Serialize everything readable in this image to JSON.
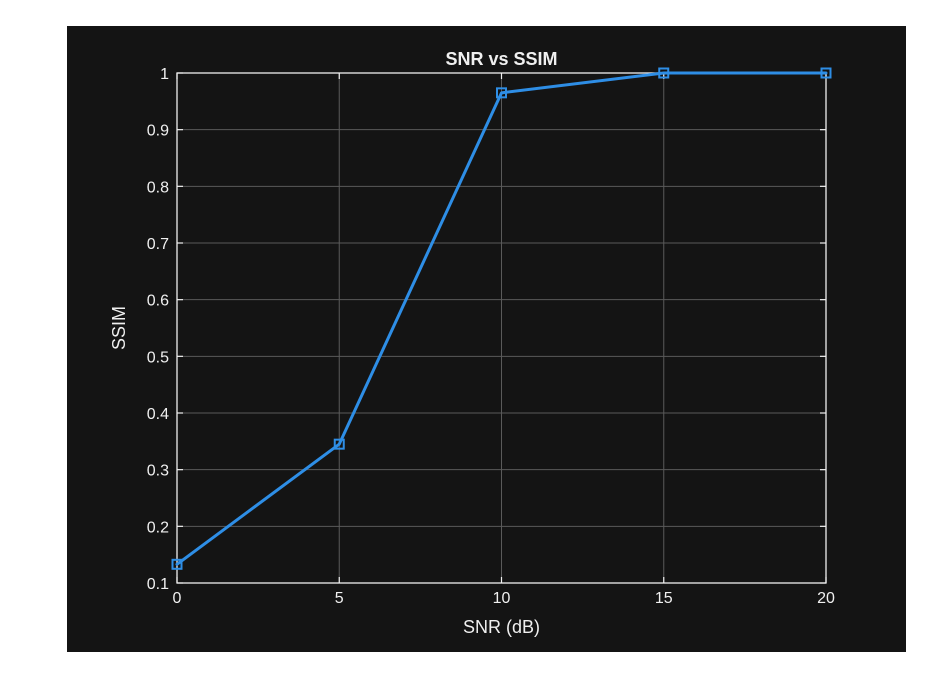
{
  "chart_data": {
    "type": "line",
    "title": "SNR vs SSIM",
    "xlabel": "SNR (dB)",
    "ylabel": "SSIM",
    "x": [
      0,
      5,
      10,
      15,
      20
    ],
    "series": [
      {
        "values": [
          0.133,
          0.345,
          0.965,
          1.0,
          1.0
        ],
        "color": "#2e8ee6",
        "marker": "square"
      }
    ],
    "xlim": [
      0,
      20
    ],
    "ylim": [
      0.1,
      1
    ],
    "xticks": [
      0,
      5,
      10,
      15,
      20
    ],
    "yticks": [
      0.1,
      0.2,
      0.3,
      0.4,
      0.5,
      0.6,
      0.7,
      0.8,
      0.9,
      1
    ],
    "xtick_labels": [
      "0",
      "5",
      "10",
      "15",
      "20"
    ],
    "ytick_labels": [
      "0.1",
      "0.2",
      "0.3",
      "0.4",
      "0.5",
      "0.6",
      "0.7",
      "0.8",
      "0.9",
      "1"
    ],
    "grid": true,
    "theme": {
      "background": "#141414",
      "axes_color": "#f0f0f0",
      "grid_color": "#5a5a5a",
      "text_color": "#f0f0f0"
    }
  }
}
